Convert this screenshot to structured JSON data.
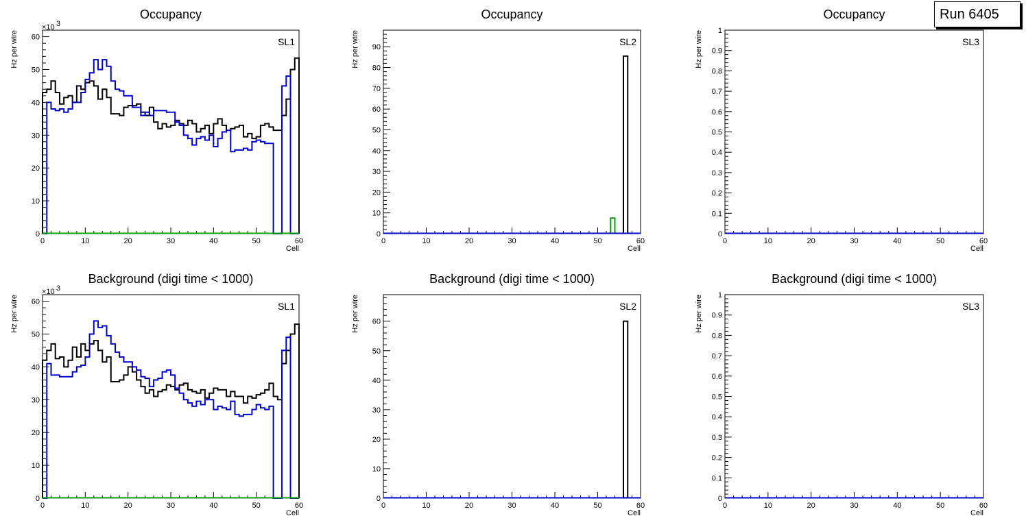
{
  "run_label": "Run 6405",
  "colors": {
    "black": "#000000",
    "blue": "#0000cc",
    "green": "#00a000"
  },
  "chart_data": [
    {
      "type": "step",
      "title": "Occupancy",
      "label": "SL1",
      "xlabel": "Cell",
      "ylabel": "Hz per wire",
      "yscale_label": "×10",
      "yscale_exp": "3",
      "xlim": [
        0,
        60
      ],
      "ylim": [
        0,
        62
      ],
      "xticks": [
        0,
        10,
        20,
        30,
        40,
        50,
        60
      ],
      "yticks": [
        0,
        10,
        20,
        30,
        40,
        50,
        60
      ],
      "ytick_labels": [
        "0",
        "10",
        "20",
        "30",
        "40",
        "50",
        "60"
      ],
      "series": [
        {
          "name": "black",
          "color": "#000000",
          "values": [
            43,
            44,
            46.5,
            43,
            39.5,
            41.5,
            42,
            40,
            45,
            44,
            46,
            46.5,
            45,
            41,
            44,
            41.5,
            36.5,
            36.5,
            36,
            38.5,
            39,
            39,
            39.5,
            37,
            36,
            38.5,
            34,
            32,
            33.5,
            32.5,
            33,
            34.5,
            33.5,
            33,
            34.5,
            33.5,
            31,
            32,
            33,
            30.5,
            33.5,
            35,
            33,
            31.5,
            32,
            32.5,
            33,
            29.5,
            30.5,
            29,
            29.5,
            33,
            33.5,
            32.5,
            31.5,
            31.5,
            36,
            41,
            50,
            53.5
          ]
        },
        {
          "name": "blue",
          "color": "#0000cc",
          "values": [
            0,
            40,
            38,
            37.5,
            38,
            37,
            38,
            40,
            40,
            43,
            47,
            49,
            53,
            50,
            53,
            51,
            46.5,
            44,
            43.5,
            42,
            42,
            38.5,
            38.5,
            36,
            37,
            36,
            37.5,
            37.5,
            37.5,
            37,
            37,
            34,
            33,
            30,
            29,
            27,
            29,
            29.5,
            28.5,
            30,
            26.5,
            29,
            31,
            31.5,
            25,
            25.5,
            25.5,
            26,
            25.5,
            28,
            28.5,
            28,
            27.5,
            27.5,
            0,
            0,
            45,
            48,
            0,
            0
          ]
        },
        {
          "name": "green",
          "color": "#00a000",
          "values": "zeros"
        }
      ]
    },
    {
      "type": "step",
      "title": "Occupancy",
      "label": "SL2",
      "xlabel": "Cell",
      "ylabel": "Hz per wire",
      "xlim": [
        0,
        60
      ],
      "ylim": [
        0,
        98
      ],
      "xticks": [
        0,
        10,
        20,
        30,
        40,
        50,
        60
      ],
      "yticks": [
        0,
        10,
        20,
        30,
        40,
        50,
        60,
        70,
        80,
        90
      ],
      "ytick_labels": [
        "0",
        "10",
        "20",
        "30",
        "40",
        "50",
        "60",
        "70",
        "80",
        "90"
      ],
      "series": [
        {
          "name": "green",
          "color": "#00a000",
          "bars": [
            [
              53,
              7.5
            ]
          ]
        },
        {
          "name": "black",
          "color": "#000000",
          "bars": [
            [
              56,
              85.5
            ]
          ]
        },
        {
          "name": "blue",
          "color": "#0000cc",
          "values": "zeros"
        }
      ]
    },
    {
      "type": "step",
      "title": "Occupancy",
      "label": "SL3",
      "xlabel": "Cell",
      "ylabel": "Hz per wire",
      "xlim": [
        0,
        60
      ],
      "ylim": [
        0,
        1
      ],
      "xticks": [
        0,
        10,
        20,
        30,
        40,
        50,
        60
      ],
      "yticks": [
        0,
        0.1,
        0.2,
        0.3,
        0.4,
        0.5,
        0.6,
        0.7,
        0.8,
        0.9,
        1
      ],
      "ytick_labels": [
        "0",
        "0.1",
        "0.2",
        "0.3",
        "0.4",
        "0.5",
        "0.6",
        "0.7",
        "0.8",
        "0.9",
        "1"
      ],
      "series": [
        {
          "name": "blue",
          "color": "#0000cc",
          "values": "zeros"
        }
      ]
    },
    {
      "type": "step",
      "title": "Background (digi time < 1000)",
      "label": "SL1",
      "xlabel": "Cell",
      "ylabel": "Hz per wire",
      "yscale_label": "×10",
      "yscale_exp": "3",
      "xlim": [
        0,
        60
      ],
      "ylim": [
        0,
        62
      ],
      "xticks": [
        0,
        10,
        20,
        30,
        40,
        50,
        60
      ],
      "yticks": [
        0,
        10,
        20,
        30,
        40,
        50,
        60
      ],
      "ytick_labels": [
        "0",
        "10",
        "20",
        "30",
        "40",
        "50",
        "60"
      ],
      "series": [
        {
          "name": "black",
          "color": "#000000",
          "values": [
            42,
            45,
            47,
            42.5,
            43,
            40,
            42,
            46,
            43,
            47,
            45,
            47,
            48,
            45,
            41.5,
            43,
            35.5,
            35.5,
            36,
            37.5,
            40,
            38.5,
            36,
            34,
            32,
            33,
            31,
            32.5,
            33,
            34.5,
            34,
            33,
            34.5,
            35,
            33,
            32.5,
            32,
            33,
            30.5,
            32,
            33.5,
            33,
            33,
            31,
            32.5,
            31,
            31,
            29,
            31,
            30.5,
            31.5,
            32,
            33,
            35,
            31,
            30,
            41,
            45,
            50,
            53
          ]
        },
        {
          "name": "blue",
          "color": "#0000cc",
          "values": [
            0,
            41,
            37.5,
            37.5,
            37,
            37,
            37,
            38.5,
            40,
            40.5,
            43,
            50,
            54,
            52,
            52.5,
            49.5,
            47,
            44.5,
            43,
            41.5,
            41.5,
            40,
            39,
            37,
            36.5,
            34,
            36,
            36.5,
            38.5,
            39,
            37.5,
            33.5,
            32,
            30,
            29,
            28,
            29.5,
            28.5,
            30,
            30,
            27,
            28,
            27.5,
            27,
            29.5,
            25.5,
            25,
            25.5,
            25.5,
            27,
            28.5,
            27.5,
            27,
            28,
            0,
            0,
            45,
            49,
            0,
            0
          ]
        },
        {
          "name": "green",
          "color": "#00a000",
          "values": "zeros"
        }
      ]
    },
    {
      "type": "step",
      "title": "Background (digi time < 1000)",
      "label": "SL2",
      "xlabel": "Cell",
      "ylabel": "Hz per wire",
      "xlim": [
        0,
        60
      ],
      "ylim": [
        0,
        69
      ],
      "xticks": [
        0,
        10,
        20,
        30,
        40,
        50,
        60
      ],
      "yticks": [
        0,
        10,
        20,
        30,
        40,
        50,
        60
      ],
      "ytick_labels": [
        "0",
        "10",
        "20",
        "30",
        "40",
        "50",
        "60"
      ],
      "series": [
        {
          "name": "black",
          "color": "#000000",
          "bars": [
            [
              56,
              60
            ]
          ]
        },
        {
          "name": "blue",
          "color": "#0000cc",
          "values": "zeros"
        }
      ]
    },
    {
      "type": "step",
      "title": "Background (digi time < 1000)",
      "label": "SL3",
      "xlabel": "Cell",
      "ylabel": "Hz per wire",
      "xlim": [
        0,
        60
      ],
      "ylim": [
        0,
        1
      ],
      "xticks": [
        0,
        10,
        20,
        30,
        40,
        50,
        60
      ],
      "yticks": [
        0,
        0.1,
        0.2,
        0.3,
        0.4,
        0.5,
        0.6,
        0.7,
        0.8,
        0.9,
        1
      ],
      "ytick_labels": [
        "0",
        "0.1",
        "0.2",
        "0.3",
        "0.4",
        "0.5",
        "0.6",
        "0.7",
        "0.8",
        "0.9",
        "1"
      ],
      "series": [
        {
          "name": "blue",
          "color": "#0000cc",
          "values": "zeros"
        }
      ]
    }
  ]
}
